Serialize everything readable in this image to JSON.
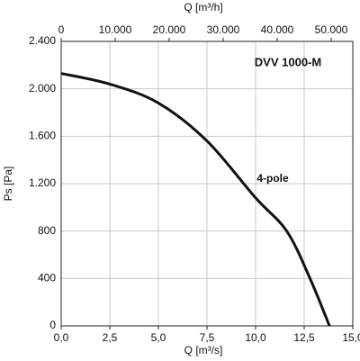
{
  "chart_data": {
    "type": "line",
    "annotations": [
      "DVV 1000-M",
      "4-pole"
    ],
    "xlabel": "Q [m³/s]",
    "x2label": "Q [m³/h]",
    "ylabel": "Ps [Pa]",
    "x": [
      0,
      2.5,
      5,
      7.5,
      10,
      11.6,
      12.8,
      13.8
    ],
    "series": [
      {
        "name": "4-pole",
        "color": "#111111",
        "values": [
          2130,
          2040,
          1880,
          1560,
          1080,
          800,
          400,
          0
        ]
      }
    ],
    "xlim": [
      0,
      15
    ],
    "xticks": [
      {
        "value": 0,
        "label": "0,0"
      },
      {
        "value": 2.5,
        "label": "2,5"
      },
      {
        "value": 5,
        "label": "5,0"
      },
      {
        "value": 7.5,
        "label": "7,5"
      },
      {
        "value": 10,
        "label": "10,0"
      },
      {
        "value": 12.5,
        "label": "12,5"
      },
      {
        "value": 15,
        "label": "15,0"
      }
    ],
    "x2lim": [
      0,
      54000
    ],
    "x2ticks": [
      0,
      {
        "value": 10000,
        "label": "10.000"
      },
      {
        "value": 20000,
        "label": "20.000"
      },
      {
        "value": 30000,
        "label": "30.000"
      },
      {
        "value": 40000,
        "label": "40.000"
      },
      {
        "value": 50000,
        "label": "50.000"
      }
    ],
    "ylim": [
      0,
      2400
    ],
    "yticks": [
      0,
      400,
      800,
      {
        "value": 1200,
        "label": "1.200"
      },
      {
        "value": 1600,
        "label": "1.600"
      },
      {
        "value": 2000,
        "label": "2.000"
      },
      {
        "value": 2400,
        "label": "2.400"
      }
    ],
    "grid": true
  }
}
